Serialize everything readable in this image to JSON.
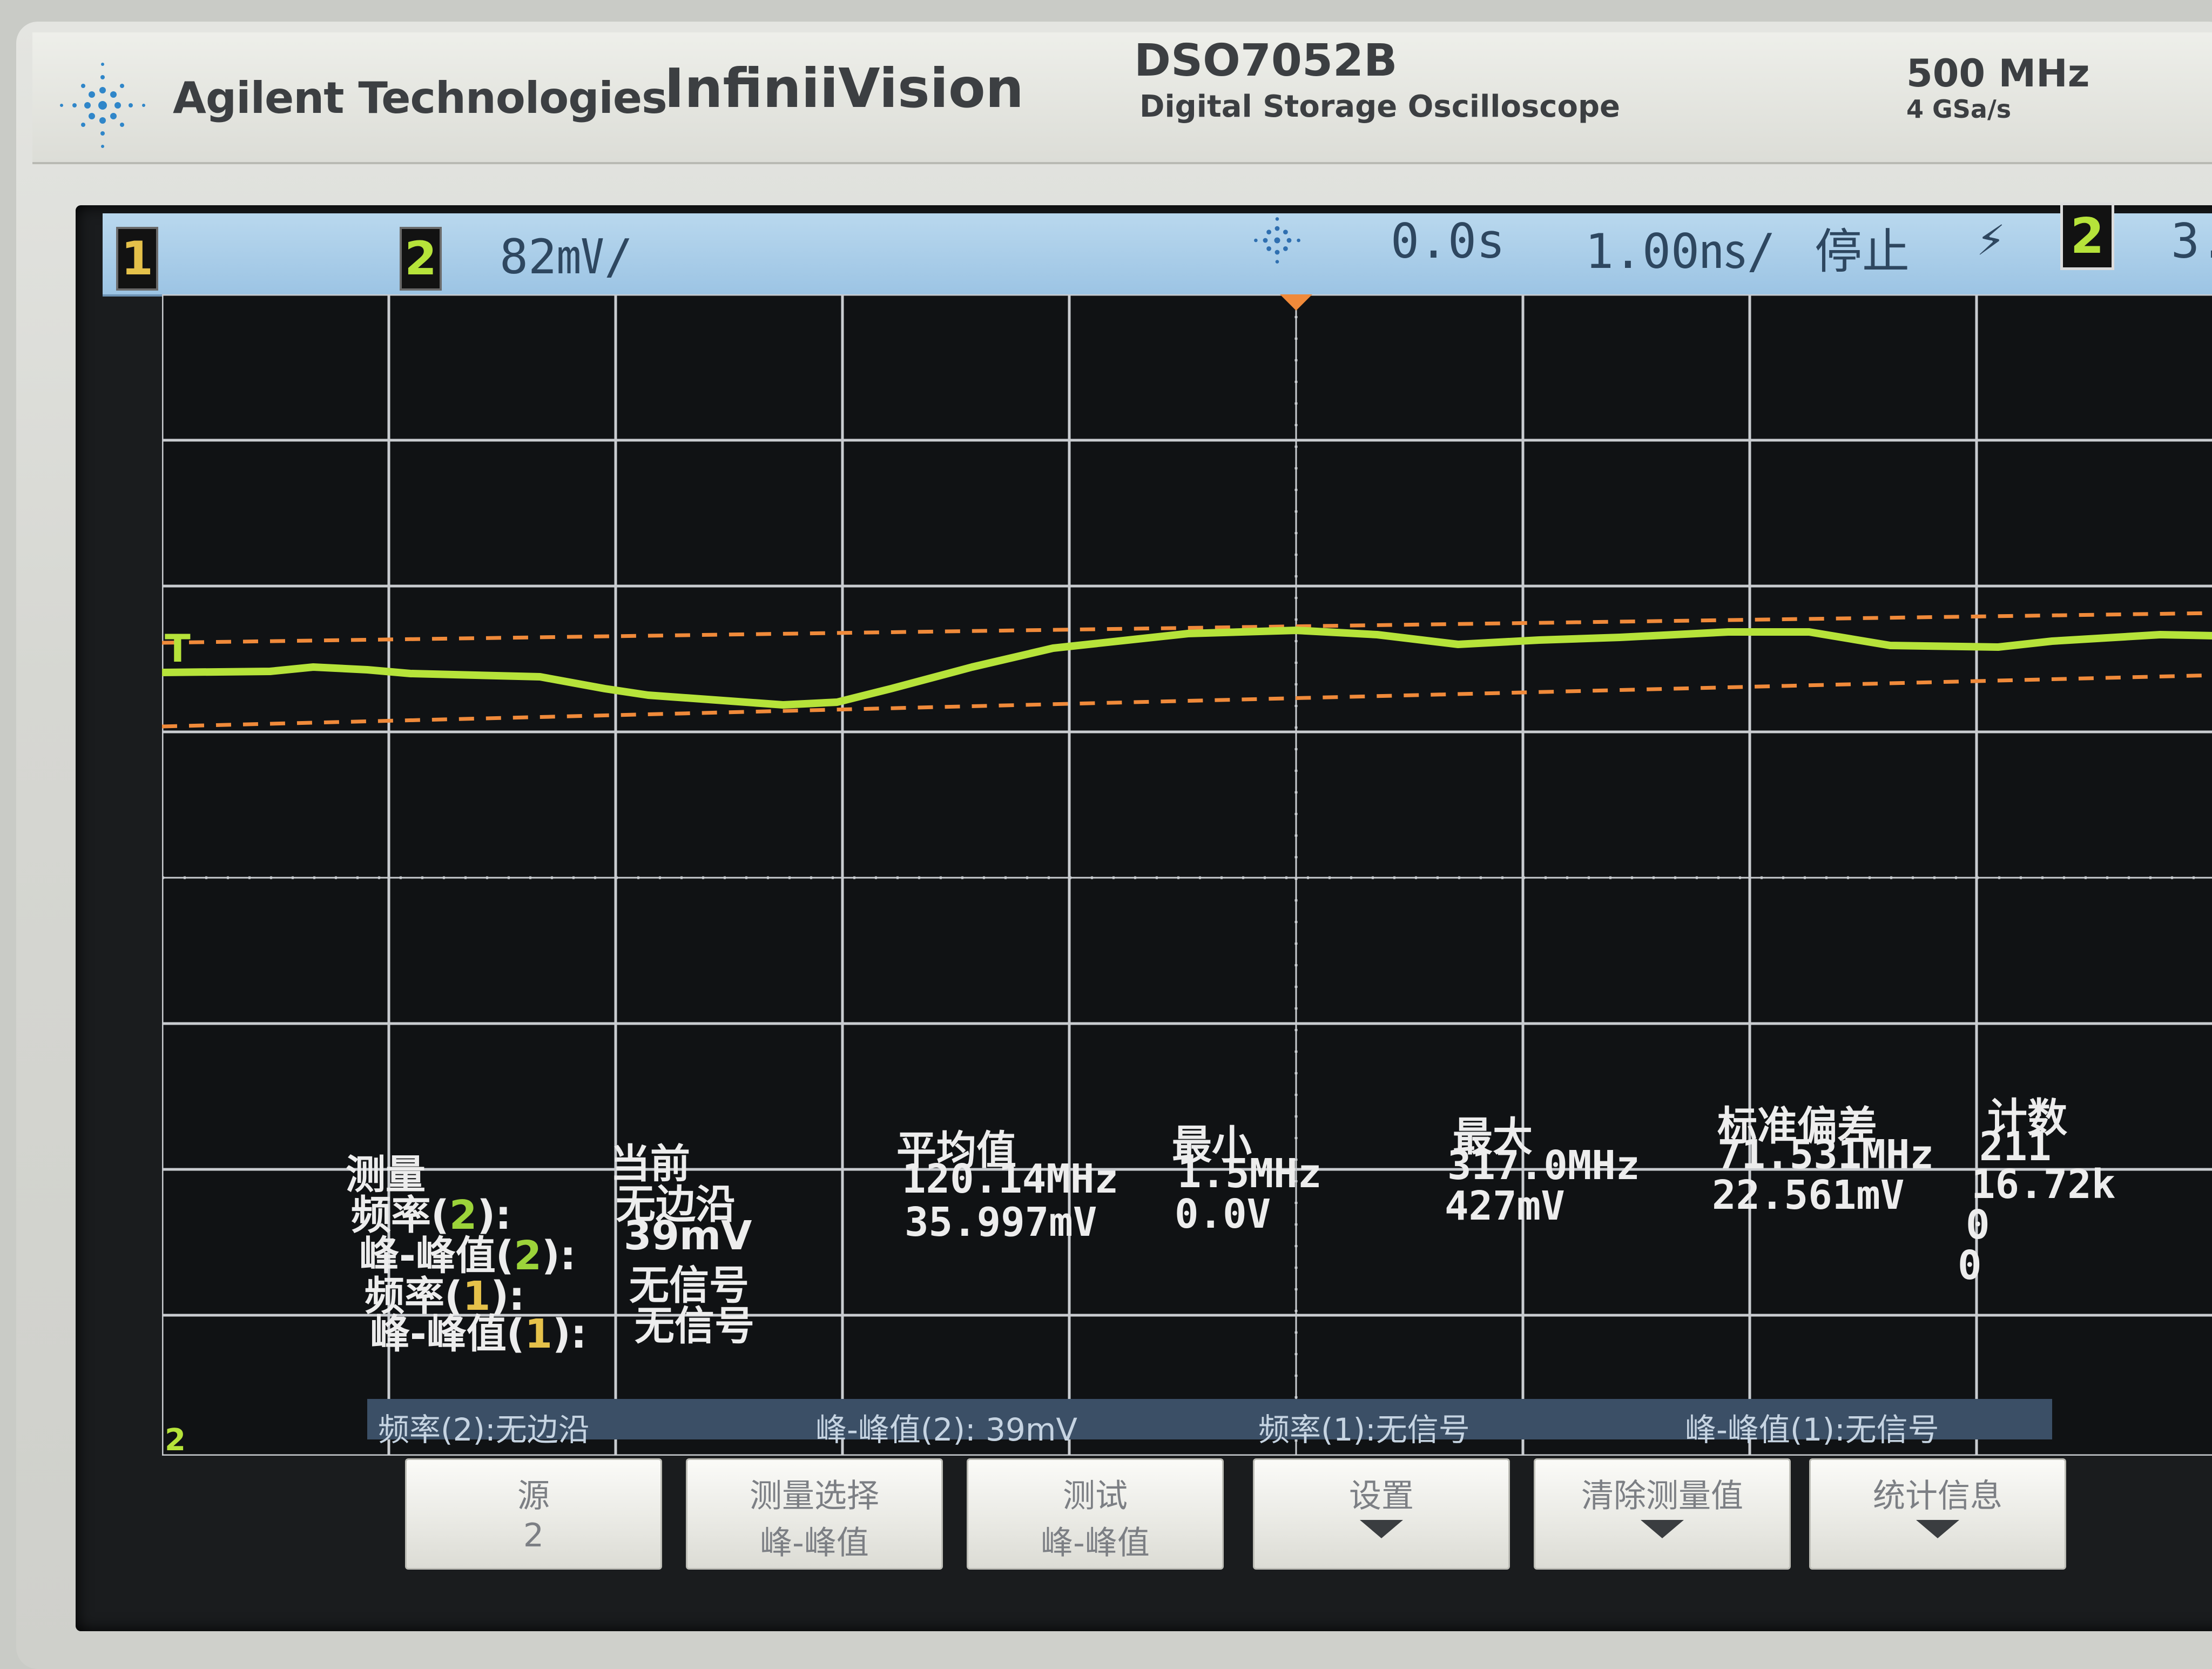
{
  "header": {
    "brand": "Agilent Technologies",
    "product_line": "InfiniiVision",
    "model": "DSO7052B",
    "model_desc": "Digital Storage Oscilloscope",
    "bandwidth": "500 MHz",
    "sample_rate": "4 GSa/s"
  },
  "status": {
    "ch1_label": "1",
    "ch2_label": "2",
    "ch2_scale": "82㎷/",
    "time_position": "0.0s",
    "timebase": "1.00㎱/",
    "run_state": "停止",
    "trigger_slope": "⚡",
    "trigger_channel": "2",
    "trigger_level": "3."
  },
  "measurements": {
    "headers": {
      "measure": "测量",
      "current": "当前",
      "mean": "平均值",
      "min": "最小",
      "max": "最大",
      "stddev": "标准偏差",
      "count": "计数"
    },
    "rows": [
      {
        "name": "频率",
        "ch": "2",
        "current": "无边沿",
        "mean": "120.14MHz",
        "min": "1.5MHz",
        "max": "317.0MHz",
        "stddev": "71.531MHz",
        "count": "211"
      },
      {
        "name": "峰-峰值",
        "ch": "2",
        "current": "39mV",
        "mean": "35.997mV",
        "min": "0.0V",
        "max": "427mV",
        "stddev": "22.561mV",
        "count": "16.72k"
      },
      {
        "name": "频率",
        "ch": "1",
        "current": "无信号",
        "count": "0"
      },
      {
        "name": "峰-峰值",
        "ch": "1",
        "current": "无信号",
        "count": "0"
      }
    ]
  },
  "infobar": {
    "seg1": "频率(2):无边沿",
    "seg2": "峰-峰值(2): 39mV",
    "seg3": "频率(1):无信号",
    "seg4": "峰-峰值(1):无信号"
  },
  "softkeys": [
    {
      "l1": "源",
      "l2": "2"
    },
    {
      "l1": "测量选择",
      "l2": "峰-峰值"
    },
    {
      "l1": "测试",
      "l2": "峰-峰值"
    },
    {
      "l1": "设置",
      "l2": ""
    },
    {
      "l1": "清除测量值",
      "l2": ""
    },
    {
      "l1": "统计信息",
      "l2": ""
    }
  ],
  "markers": {
    "trigger_marker": "T",
    "ch2_ground": "2"
  },
  "colors": {
    "trace": "#b6e33a",
    "cursor": "#f08a3a",
    "grid": "#c9ccd0",
    "statusbar": "#a8cbe8"
  }
}
